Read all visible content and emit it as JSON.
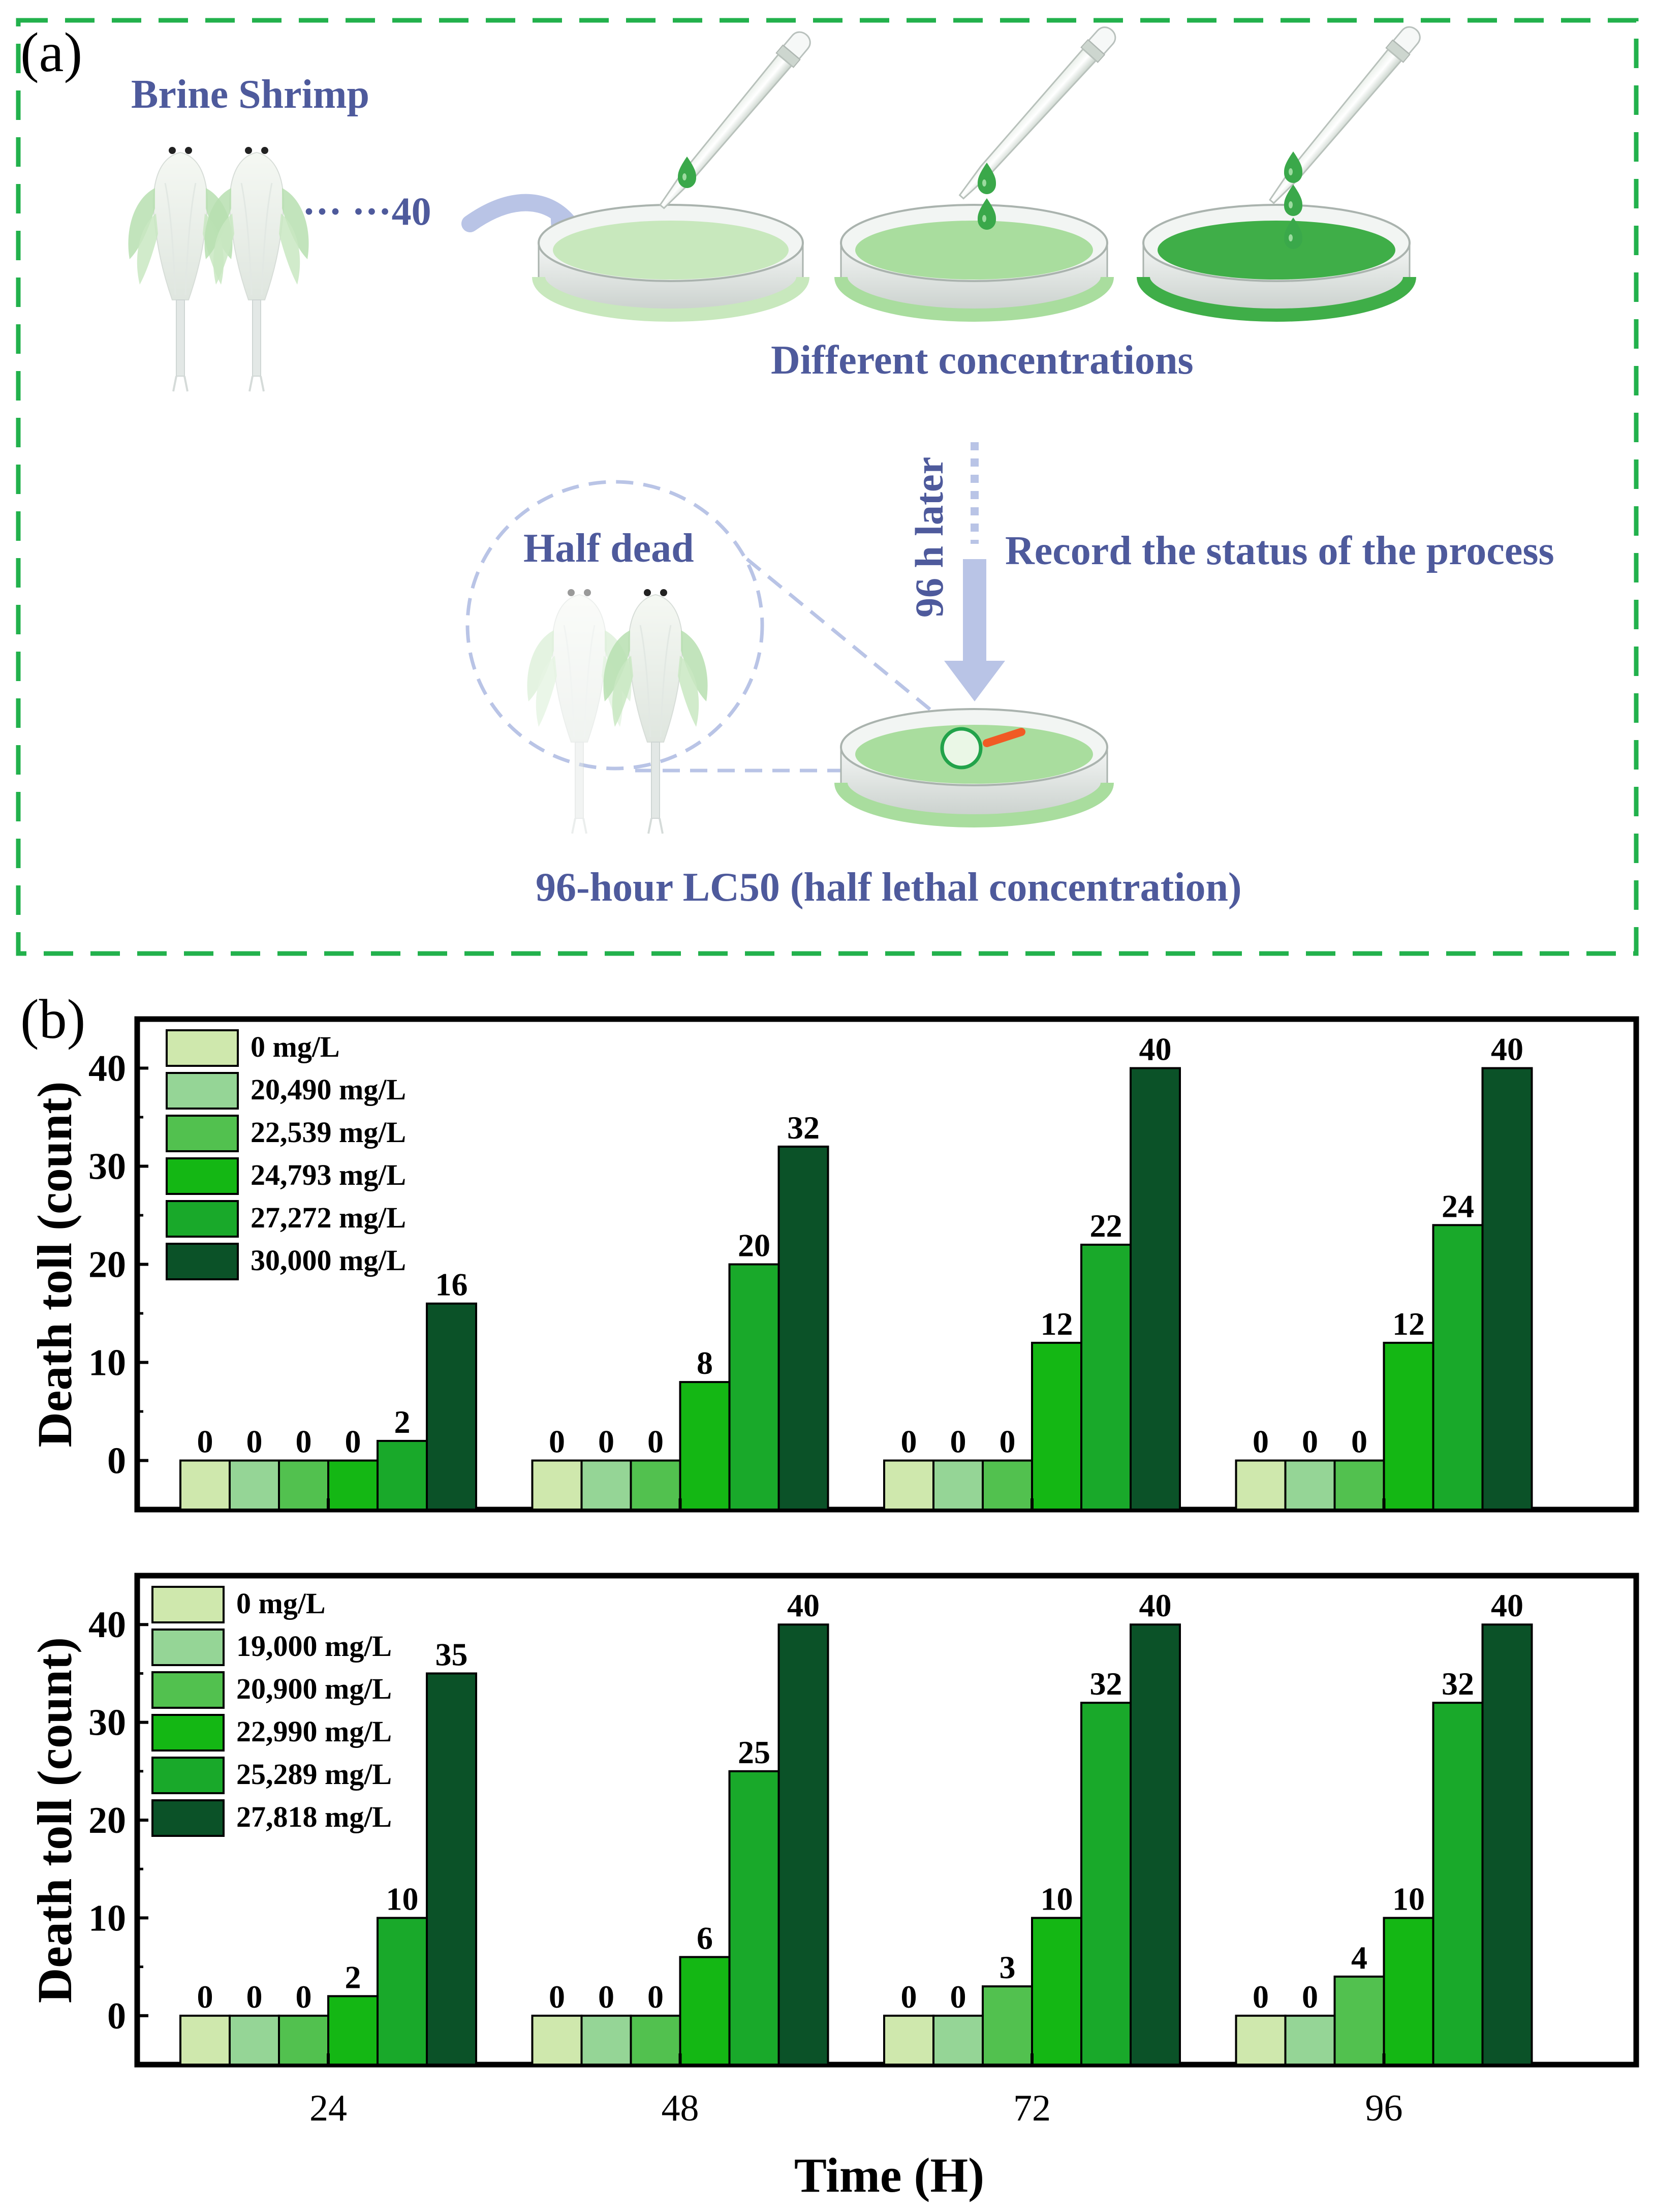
{
  "panel_a": {
    "letter": "(a)",
    "brine_label": "Brine Shrimp",
    "count_label": "··· ···40",
    "different_label": "Different concentrations",
    "time_label": "96 h later",
    "record_label": "Record the status of the process",
    "half_dead_label": "Half dead",
    "lc50_label": "96-hour LC50 (half lethal concentration)"
  },
  "panel_b_letter": "(b)",
  "colors": {
    "frame_dash": "#22b14c",
    "series": [
      "#cfe8ad",
      "#95d596",
      "#52c14f",
      "#14b714",
      "#19a92a",
      "#0b5228"
    ],
    "dish_light": "#c8e8bd",
    "dish_mid": "#a9dd9e",
    "dish_dark": "#3fae48",
    "accent_blue": "#4e5a9c",
    "arrow_blue": "#b9c4e6",
    "lens_red": "#f15a24"
  },
  "chart_data": [
    {
      "type": "bar",
      "x": [
        24,
        48,
        72,
        96
      ],
      "categories": [
        "24",
        "48",
        "72",
        "96"
      ],
      "ylabel": "Death toll (count)",
      "xlabel": "",
      "ylim": [
        -5,
        45
      ],
      "yticks": [
        0,
        10,
        20,
        30,
        40
      ],
      "legend": "top-left",
      "grid": false,
      "series": [
        {
          "name": "0 mg/L",
          "values": [
            0,
            0,
            0,
            0
          ]
        },
        {
          "name": "20,490 mg/L",
          "values": [
            0,
            0,
            0,
            0
          ]
        },
        {
          "name": "22,539 mg/L",
          "values": [
            0,
            0,
            0,
            0
          ]
        },
        {
          "name": "24,793 mg/L",
          "values": [
            0,
            8,
            12,
            12
          ]
        },
        {
          "name": "27,272 mg/L",
          "values": [
            2,
            20,
            22,
            24
          ]
        },
        {
          "name": "30,000 mg/L",
          "values": [
            16,
            32,
            40,
            40
          ]
        }
      ]
    },
    {
      "type": "bar",
      "x": [
        24,
        48,
        72,
        96
      ],
      "categories": [
        "24",
        "48",
        "72",
        "96"
      ],
      "ylabel": "Death toll (count)",
      "xlabel": "Time (H)",
      "ylim": [
        -5,
        45
      ],
      "yticks": [
        0,
        10,
        20,
        30,
        40
      ],
      "legend": "top-left",
      "grid": false,
      "series": [
        {
          "name": "0 mg/L",
          "values": [
            0,
            0,
            0,
            0
          ]
        },
        {
          "name": "19,000 mg/L",
          "values": [
            0,
            0,
            0,
            0
          ]
        },
        {
          "name": "20,900 mg/L",
          "values": [
            0,
            0,
            3,
            4
          ]
        },
        {
          "name": "22,990 mg/L",
          "values": [
            2,
            6,
            10,
            10
          ]
        },
        {
          "name": "25,289 mg/L",
          "values": [
            10,
            25,
            32,
            32
          ]
        },
        {
          "name": "27,818 mg/L",
          "values": [
            35,
            40,
            40,
            40
          ]
        }
      ]
    }
  ]
}
